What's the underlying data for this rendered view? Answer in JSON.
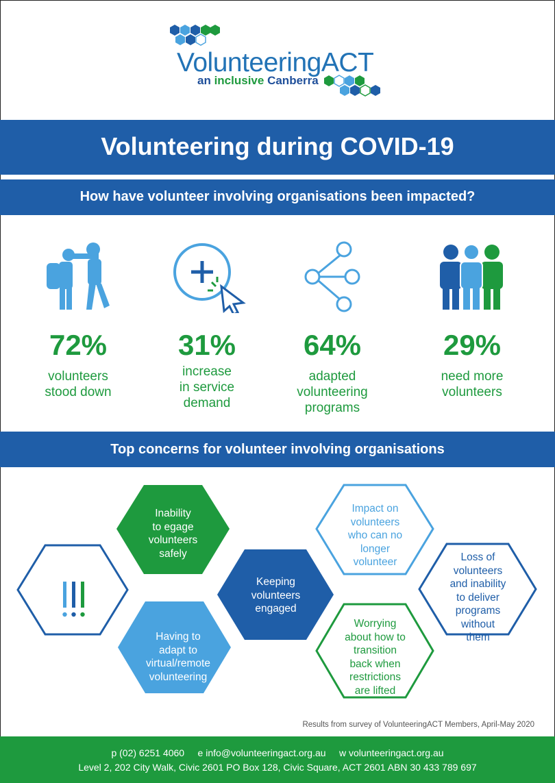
{
  "brand": {
    "name": "VolunteeringACT",
    "tagline_prefix": "an",
    "tagline_highlight": "inclusive",
    "tagline_suffix": "Canberra",
    "colors": {
      "blue": "#1f5ea8",
      "light_blue": "#4aa3df",
      "green": "#1e9a3e"
    }
  },
  "title": "Volunteering during COVID-19",
  "subtitle": "How have volunteer involving organisations been impacted?",
  "stats": [
    {
      "icon": "volunteer-stood-down-icon",
      "percent": "72%",
      "line1": "volunteers",
      "line2": "stood down",
      "line3": ""
    },
    {
      "icon": "increase-click-icon",
      "percent": "31%",
      "line1": "increase",
      "line2": "in service",
      "line3": "demand"
    },
    {
      "icon": "share-network-icon",
      "percent": "64%",
      "line1": "adapted",
      "line2": "volunteering",
      "line3": "programs"
    },
    {
      "icon": "people-group-icon",
      "percent": "29%",
      "line1": "need more",
      "line2": "volunteers",
      "line3": ""
    }
  ],
  "concerns_heading": "Top concerns for volunteer involving organisations",
  "concerns": {
    "exclamation_icon": "exclamation-marks-icon",
    "safety": [
      "Inability",
      "to egage",
      "volunteers",
      "safely"
    ],
    "virtual": [
      "Having to",
      "adapt to",
      "virtual/remote",
      "volunteering"
    ],
    "engaged": [
      "Keeping",
      "volunteers",
      "engaged"
    ],
    "impact": [
      "Impact on",
      "volunteers",
      "who can no",
      "longer",
      "volunteer"
    ],
    "transition": [
      "Worrying",
      "about how to",
      "transition",
      "back when",
      "restrictions",
      "are lifted"
    ],
    "loss": [
      "Loss of",
      "volunteers",
      "and inability",
      "to deliver",
      "programs",
      "without",
      "them"
    ]
  },
  "footnote": "Results from survey of VolunteeringACT Members, April-May 2020",
  "footer": {
    "contact": "p (02) 6251 4060     e info@volunteeringact.org.au     w volunteeringact.org.au",
    "address": "Level 2, 202 City Walk, Civic 2601  PO Box 128, Civic Square, ACT 2601  ABN 30 433 789 697"
  }
}
